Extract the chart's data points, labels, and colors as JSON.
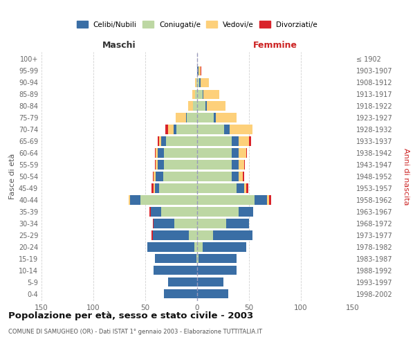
{
  "age_groups": [
    "0-4",
    "5-9",
    "10-14",
    "15-19",
    "20-24",
    "25-29",
    "30-34",
    "35-39",
    "40-44",
    "45-49",
    "50-54",
    "55-59",
    "60-64",
    "65-69",
    "70-74",
    "75-79",
    "80-84",
    "85-89",
    "90-94",
    "95-99",
    "100+"
  ],
  "birth_years": [
    "1998-2002",
    "1993-1997",
    "1988-1992",
    "1983-1987",
    "1978-1982",
    "1973-1977",
    "1968-1972",
    "1963-1967",
    "1958-1962",
    "1953-1957",
    "1948-1952",
    "1943-1947",
    "1938-1942",
    "1933-1937",
    "1928-1932",
    "1923-1927",
    "1918-1922",
    "1913-1917",
    "1908-1912",
    "1903-1907",
    "≤ 1902"
  ],
  "colors": {
    "celibi": "#3a6ea5",
    "coniugati": "#bdd7a3",
    "vedovi": "#fdd07a",
    "divorziati": "#d9232b"
  },
  "males": {
    "celibi": [
      32,
      28,
      42,
      40,
      45,
      35,
      20,
      10,
      10,
      4,
      7,
      6,
      6,
      5,
      3,
      1,
      0,
      0,
      0,
      0,
      0
    ],
    "coniugati": [
      0,
      0,
      0,
      1,
      3,
      8,
      22,
      35,
      55,
      37,
      33,
      32,
      32,
      30,
      20,
      10,
      4,
      2,
      1,
      0,
      0
    ],
    "vedovi": [
      0,
      0,
      0,
      0,
      0,
      0,
      0,
      0,
      1,
      1,
      2,
      2,
      2,
      2,
      5,
      10,
      5,
      3,
      1,
      0,
      0
    ],
    "divorziati": [
      0,
      0,
      0,
      0,
      0,
      1,
      1,
      1,
      0,
      2,
      1,
      1,
      1,
      1,
      3,
      0,
      0,
      0,
      0,
      0,
      0
    ]
  },
  "females": {
    "celibi": [
      30,
      25,
      38,
      37,
      42,
      38,
      22,
      14,
      12,
      7,
      7,
      7,
      7,
      7,
      5,
      2,
      1,
      1,
      1,
      1,
      0
    ],
    "coniugati": [
      0,
      0,
      0,
      1,
      5,
      15,
      28,
      40,
      55,
      38,
      33,
      33,
      33,
      33,
      26,
      16,
      8,
      5,
      2,
      0,
      0
    ],
    "vedovi": [
      0,
      0,
      0,
      0,
      0,
      0,
      0,
      0,
      2,
      2,
      4,
      5,
      7,
      10,
      22,
      20,
      18,
      15,
      8,
      2,
      0
    ],
    "divorziati": [
      0,
      0,
      0,
      0,
      0,
      0,
      0,
      0,
      2,
      2,
      1,
      1,
      1,
      2,
      0,
      0,
      0,
      0,
      0,
      1,
      0
    ]
  },
  "title": "Popolazione per età, sesso e stato civile - 2003",
  "subtitle": "COMUNE DI SAMUGHEO (OR) - Dati ISTAT 1° gennaio 2003 - Elaborazione TUTTITALIA.IT",
  "xlabel_left": "Maschi",
  "xlabel_right": "Femmine",
  "ylabel_left": "Fasce di età",
  "ylabel_right": "Anni di nascita",
  "xlim": 150,
  "legend_labels": [
    "Celibi/Nubili",
    "Coniugati/e",
    "Vedovi/e",
    "Divorziati/e"
  ],
  "background_color": "#ffffff",
  "grid_color": "#cccccc"
}
